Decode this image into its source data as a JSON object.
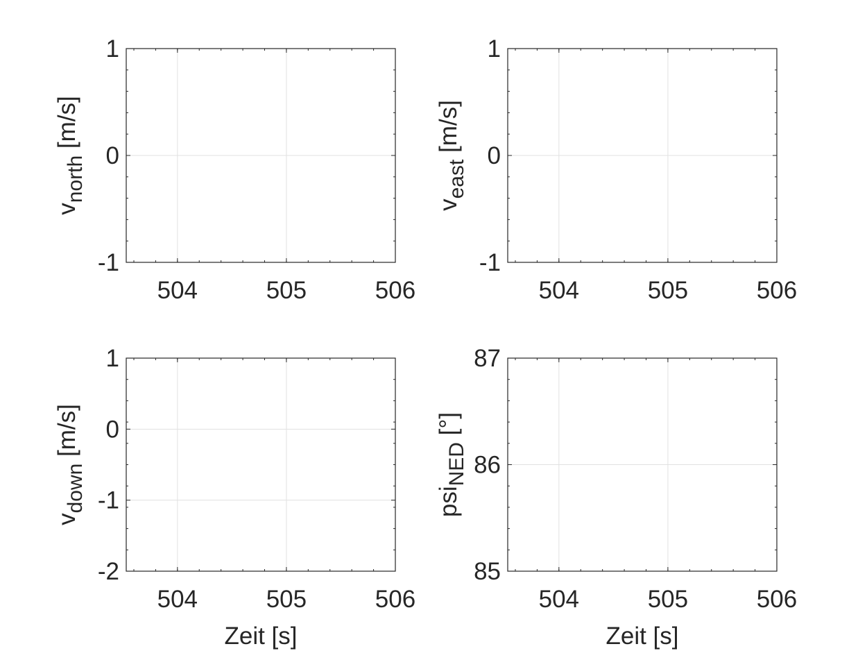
{
  "chart_data": [
    {
      "type": "line",
      "title": "",
      "xlabel": "",
      "ylabel": {
        "base": "v",
        "sub": "north",
        "unit": " [m/s]"
      },
      "xlim": [
        503.53,
        506
      ],
      "ylim": [
        -1,
        1
      ],
      "xticks": [
        504,
        505,
        506
      ],
      "yticks": [
        -1,
        0,
        1
      ],
      "series": [],
      "grid": true
    },
    {
      "type": "line",
      "title": "",
      "xlabel": "",
      "ylabel": {
        "base": "v",
        "sub": "east",
        "unit": " [m/s]"
      },
      "xlim": [
        503.53,
        506
      ],
      "ylim": [
        -1,
        1
      ],
      "xticks": [
        504,
        505,
        506
      ],
      "yticks": [
        -1,
        0,
        1
      ],
      "series": [],
      "grid": true
    },
    {
      "type": "line",
      "title": "",
      "xlabel": "Zeit [s]",
      "ylabel": {
        "base": "v",
        "sub": "down",
        "unit": " [m/s]"
      },
      "xlim": [
        503.53,
        506
      ],
      "ylim": [
        -2,
        1
      ],
      "xticks": [
        504,
        505,
        506
      ],
      "yticks": [
        -2,
        -1,
        0,
        1
      ],
      "series": [],
      "grid": true
    },
    {
      "type": "line",
      "title": "",
      "xlabel": "Zeit [s]",
      "ylabel": {
        "base": "psi",
        "sub": "NED",
        "unit": " [°]"
      },
      "xlim": [
        503.53,
        506
      ],
      "ylim": [
        85,
        87
      ],
      "xticks": [
        504,
        505,
        506
      ],
      "yticks": [
        85,
        86,
        87
      ],
      "series": [],
      "grid": true
    }
  ]
}
